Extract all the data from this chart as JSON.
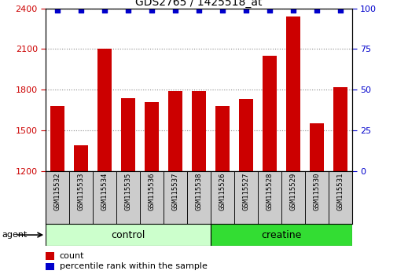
{
  "title": "GDS2765 / 1425518_at",
  "samples": [
    "GSM115532",
    "GSM115533",
    "GSM115534",
    "GSM115535",
    "GSM115536",
    "GSM115537",
    "GSM115538",
    "GSM115526",
    "GSM115527",
    "GSM115528",
    "GSM115529",
    "GSM115530",
    "GSM115531"
  ],
  "counts": [
    1680,
    1390,
    2100,
    1740,
    1710,
    1790,
    1790,
    1680,
    1730,
    2050,
    2340,
    1550,
    1820
  ],
  "percentiles": [
    99,
    99,
    99,
    99,
    99,
    99,
    99,
    99,
    99,
    99,
    99,
    99,
    99
  ],
  "ylim_left": [
    1200,
    2400
  ],
  "ylim_right": [
    0,
    100
  ],
  "yticks_left": [
    1200,
    1500,
    1800,
    2100,
    2400
  ],
  "yticks_right": [
    0,
    25,
    50,
    75,
    100
  ],
  "bar_color": "#cc0000",
  "dot_color": "#0000cc",
  "group1_label": "control",
  "group1_n": 7,
  "group2_label": "creatine",
  "group2_n": 6,
  "agent_label": "agent",
  "legend_count_label": "count",
  "legend_pct_label": "percentile rank within the sample",
  "group1_color": "#ccffcc",
  "group2_color": "#33dd33",
  "tick_label_bg": "#cccccc",
  "xlabel_color": "#cc0000",
  "ylabel_right_color": "#0000cc"
}
